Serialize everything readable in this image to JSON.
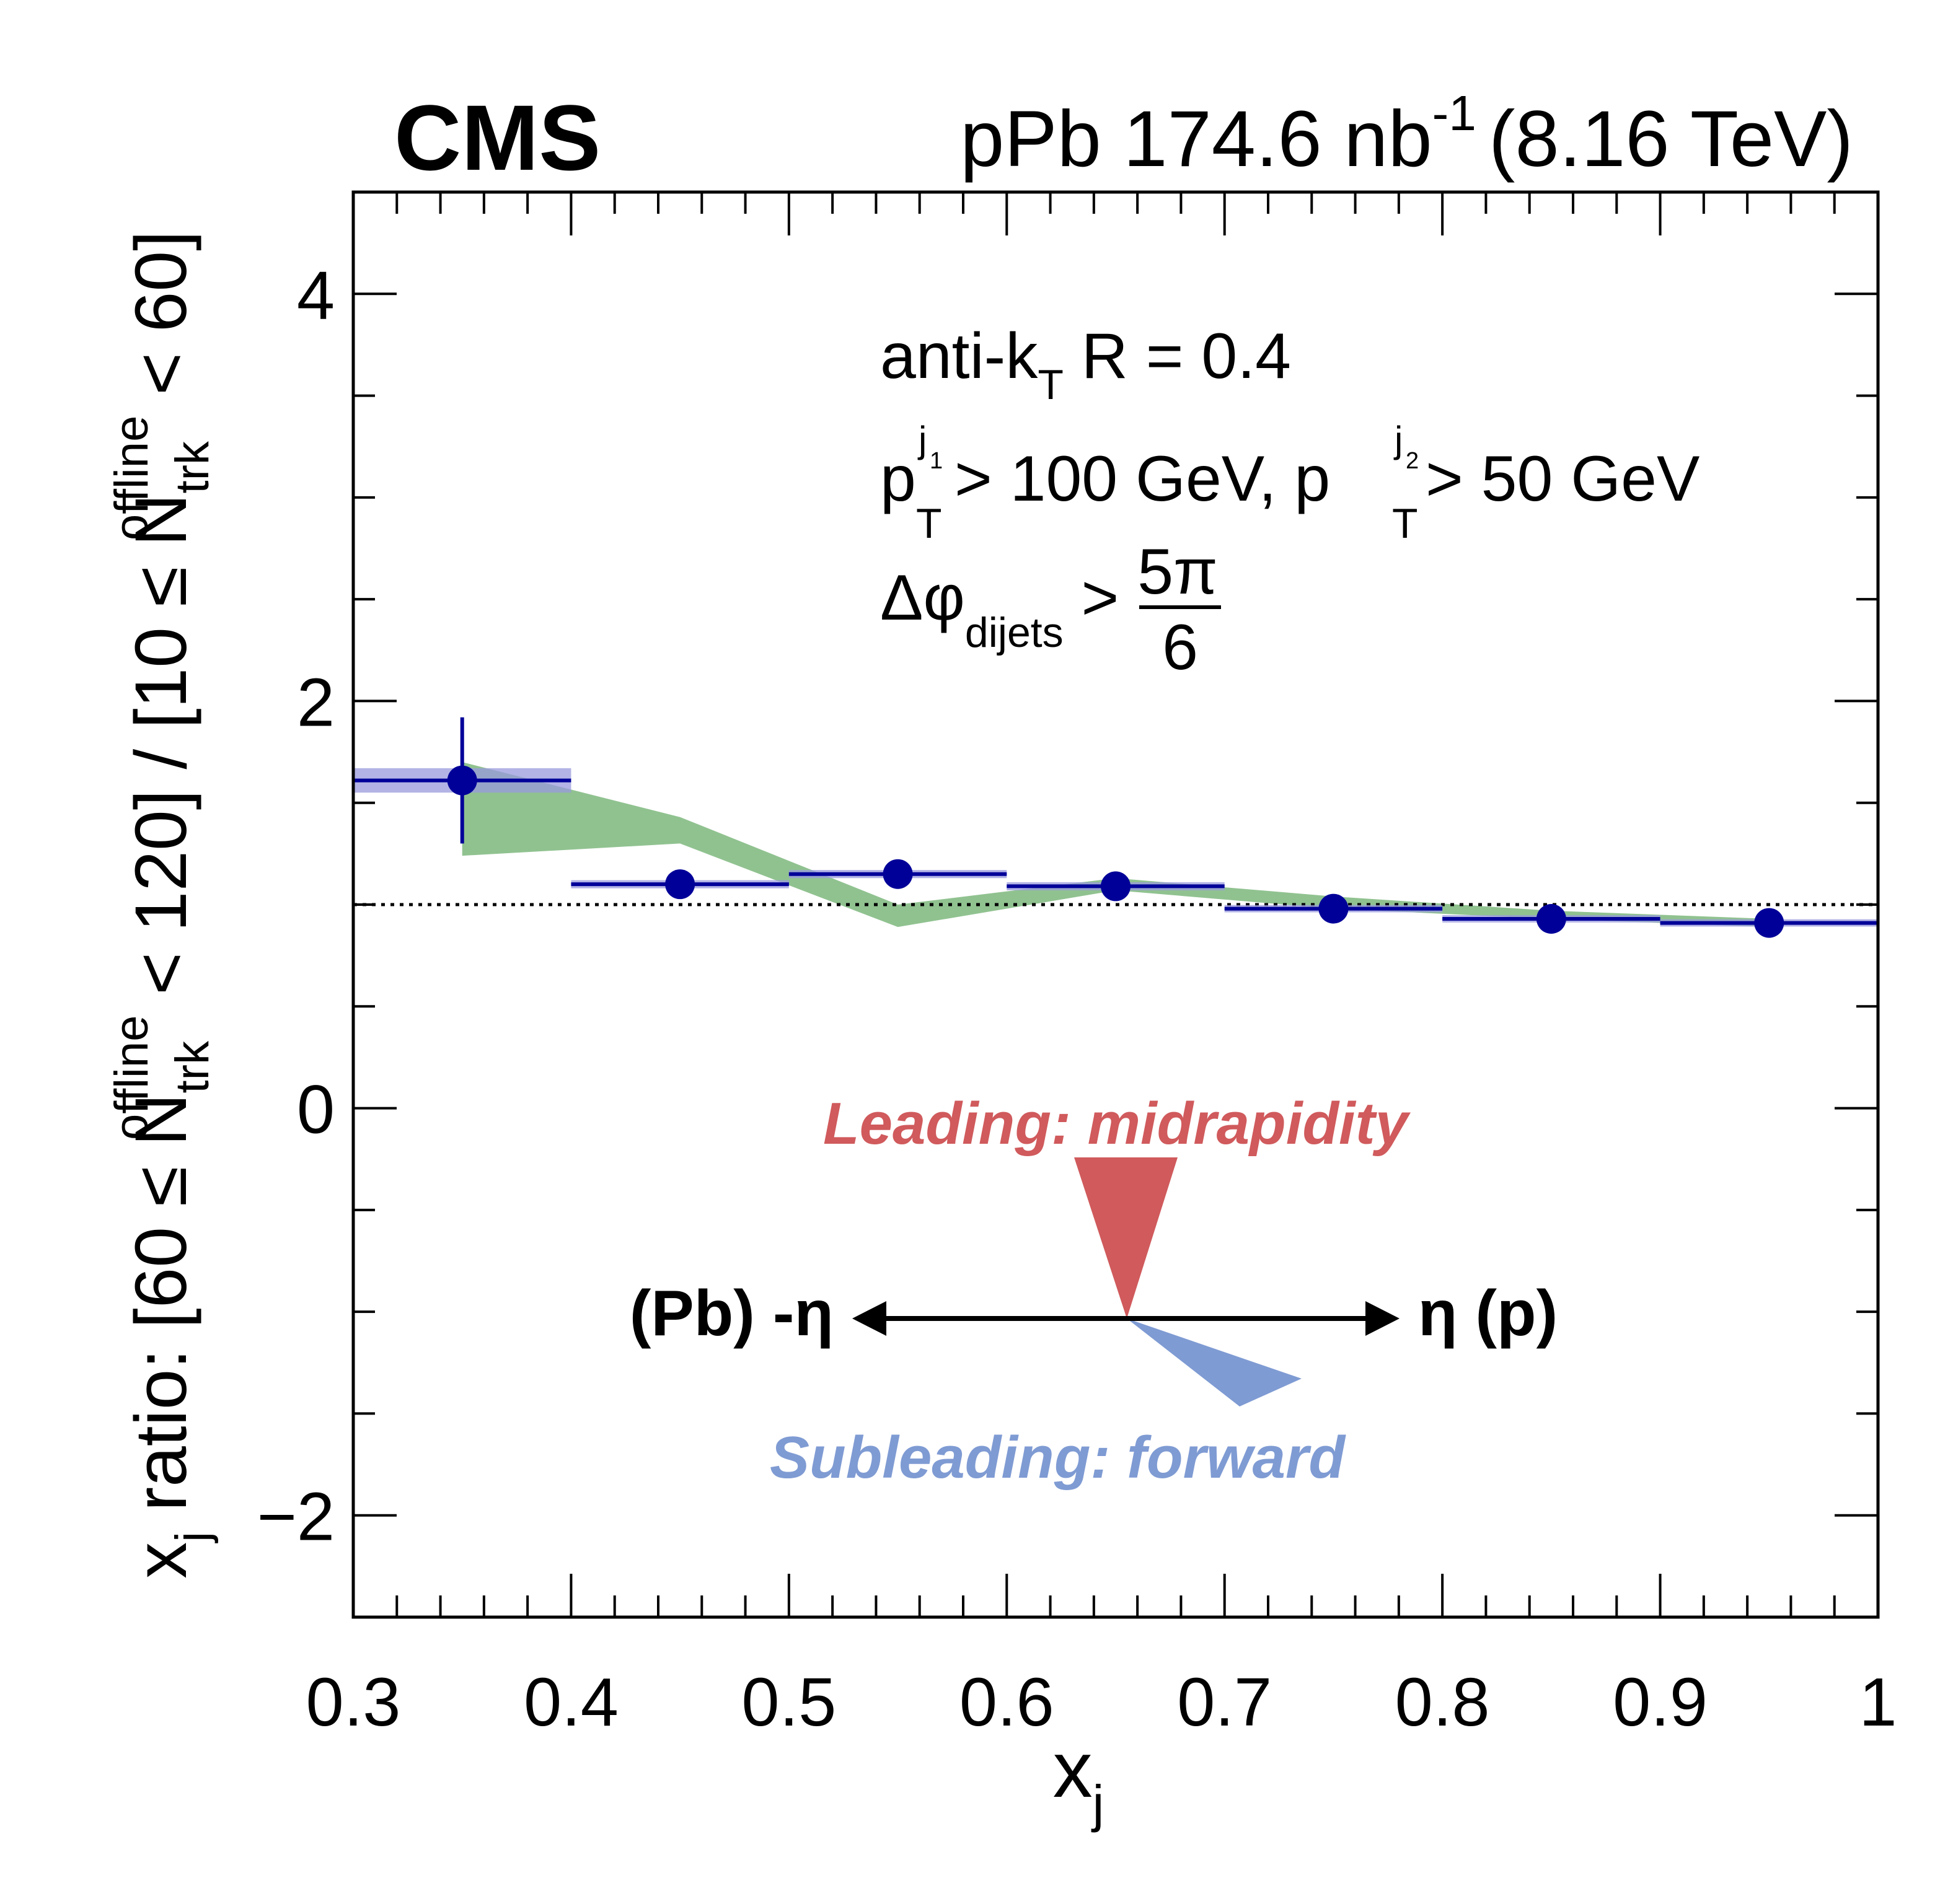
{
  "header": {
    "experiment": "CMS",
    "lumi_text": "pPb 174.6 nb",
    "lumi_exponent": "-1",
    "energy": "(8.16 TeV)"
  },
  "legend_text": {
    "line1_main": "anti-k",
    "line1_sub": "T",
    "line1_tail": " R = 0.4",
    "line2_p": "p",
    "line2_sub": "T",
    "line2_sup1": "j",
    "line2_sup1_sub": "1",
    "line2_mid": " > 100 GeV, p",
    "line2_sup2": "j",
    "line2_sup2_sub": "2",
    "line2_tail": " > 50 GeV",
    "line3_main": "Δφ",
    "line3_sub": "dijets",
    "line3_gt": " >",
    "line3_num": "5π",
    "line3_den": "6"
  },
  "schematic": {
    "leading_label": "Leading: midrapidity",
    "subleading_label": "Subleading: forward",
    "left_label": "(Pb) -η",
    "right_label": "η (p)",
    "leading_color": "#d05a5c",
    "subleading_color": "#7f9bd3"
  },
  "chart_data": {
    "type": "scatter",
    "xlabel": "x",
    "xlabel_sub": "j",
    "ylabel": "x_j ratio: [60 ≤ N_trk^offline < 120] / [10 ≤ N_trk^offline < 60]",
    "ylabel_parts": {
      "a": "x",
      "a_sub": "j",
      "b": " ratio: [60 ≤ N",
      "n_sup": "offline",
      "n_sub": "trk",
      "c": " < 120] / [10 ≤ N",
      "d": " < 60]"
    },
    "xlim": [
      0.3,
      1.0
    ],
    "ylim": [
      -2.5,
      4.5
    ],
    "xticks": [
      0.3,
      0.4,
      0.5,
      0.6,
      0.7,
      0.8,
      0.9,
      1.0
    ],
    "xtick_labels": [
      "0.3",
      "0.4",
      "0.5",
      "0.6",
      "0.7",
      "0.8",
      "0.9",
      "1"
    ],
    "yticks": [
      -2,
      0,
      2,
      4
    ],
    "ytick_labels": [
      "−2",
      "0",
      "2",
      "4"
    ],
    "reference_line": 1.0,
    "grid": false,
    "data_color": "#000099",
    "syst_color": "#9999dd",
    "band_color": "#90c290",
    "points": [
      {
        "x": 0.35,
        "y": 1.61,
        "xlow": 0.3,
        "xhigh": 0.4,
        "stat": 0.31,
        "syst": 0.06
      },
      {
        "x": 0.45,
        "y": 1.1,
        "xlow": 0.4,
        "xhigh": 0.5,
        "stat": 0.02,
        "syst": 0.02
      },
      {
        "x": 0.55,
        "y": 1.15,
        "xlow": 0.5,
        "xhigh": 0.6,
        "stat": 0.02,
        "syst": 0.02
      },
      {
        "x": 0.65,
        "y": 1.09,
        "xlow": 0.6,
        "xhigh": 0.7,
        "stat": 0.02,
        "syst": 0.02
      },
      {
        "x": 0.75,
        "y": 0.98,
        "xlow": 0.7,
        "xhigh": 0.8,
        "stat": 0.01,
        "syst": 0.01
      },
      {
        "x": 0.85,
        "y": 0.93,
        "xlow": 0.8,
        "xhigh": 0.9,
        "stat": 0.01,
        "syst": 0.01
      },
      {
        "x": 0.95,
        "y": 0.91,
        "xlow": 0.9,
        "xhigh": 1.0,
        "stat": 0.01,
        "syst": 0.01
      }
    ],
    "band": {
      "x": [
        0.35,
        0.45,
        0.55,
        0.65,
        0.75,
        0.85,
        0.95
      ],
      "upper": [
        1.7,
        1.43,
        1.0,
        1.13,
        1.04,
        0.97,
        0.93
      ],
      "lower": [
        1.24,
        1.3,
        0.89,
        1.07,
        0.98,
        0.93,
        0.89
      ]
    }
  }
}
